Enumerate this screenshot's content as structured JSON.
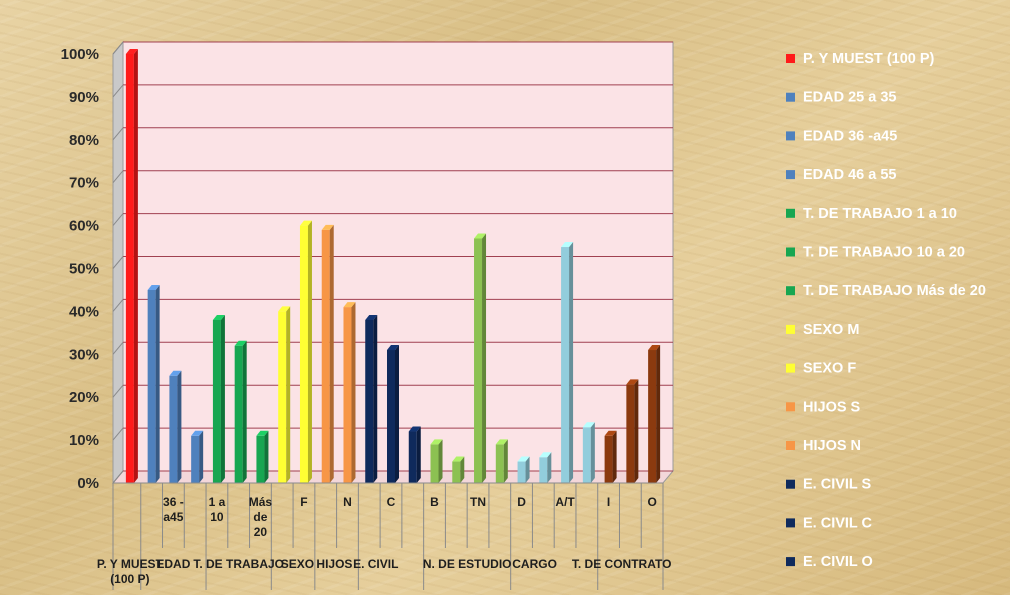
{
  "chart_data": {
    "type": "bar",
    "ylim": [
      0,
      100
    ],
    "yticks": [
      "0%",
      "10%",
      "20%",
      "30%",
      "40%",
      "50%",
      "60%",
      "70%",
      "80%",
      "90%",
      "100%"
    ],
    "grid": true,
    "legend_position": "right",
    "series": [
      {
        "name": "P.  Y MUEST (100 P)",
        "value": 100,
        "color": "#ff1a1a"
      },
      {
        "name": "EDAD  25 a 35",
        "value": 45,
        "color": "#4f81bd"
      },
      {
        "name": "EDAD  36 -a45",
        "value": 25,
        "color": "#4f81bd"
      },
      {
        "name": "EDAD  46 a 55",
        "value": 11,
        "color": "#4f81bd"
      },
      {
        "name": "T. DE TRABAJO 1 a 10",
        "value": 38,
        "color": "#17a651"
      },
      {
        "name": "T. DE TRABAJO 10 a 20",
        "value": 32,
        "color": "#17a651"
      },
      {
        "name": "T. DE TRABAJO Más de 20",
        "value": 11,
        "color": "#17a651"
      },
      {
        "name": "SEXO M",
        "value": 40,
        "color": "#ffff33"
      },
      {
        "name": "SEXO F",
        "value": 60,
        "color": "#ffff33"
      },
      {
        "name": "HIJOS S",
        "value": 59,
        "color": "#f79646"
      },
      {
        "name": "HIJOS N",
        "value": 41,
        "color": "#f79646"
      },
      {
        "name": "E. CIVIL S",
        "value": 38,
        "color": "#0f2a5c"
      },
      {
        "name": "E. CIVIL C",
        "value": 31,
        "color": "#0f2a5c"
      },
      {
        "name": "E. CIVIL O",
        "value": 12,
        "color": "#0f2a5c"
      },
      {
        "value": 9,
        "color": "#8cc152"
      },
      {
        "value": 5,
        "color": "#8cc152"
      },
      {
        "value": 57,
        "color": "#8cc152"
      },
      {
        "value": 9,
        "color": "#8cc152"
      },
      {
        "value": 5,
        "color": "#92cddc"
      },
      {
        "value": 6,
        "color": "#92cddc"
      },
      {
        "value": 55,
        "color": "#92cddc"
      },
      {
        "value": 13,
        "color": "#92cddc"
      },
      {
        "value": 11,
        "color": "#8b3a0f"
      },
      {
        "value": 23,
        "color": "#8b3a0f"
      },
      {
        "value": 31,
        "color": "#8b3a0f"
      }
    ],
    "inner_labels": [
      {
        "lines": [
          "36 -",
          "a45"
        ],
        "slot": 2
      },
      {
        "lines": [
          "1 a",
          "10"
        ],
        "slot": 4
      },
      {
        "lines": [
          "Más",
          "de",
          "20"
        ],
        "slot": 6
      },
      {
        "lines": [
          "F"
        ],
        "slot": 8
      },
      {
        "lines": [
          "N"
        ],
        "slot": 10
      },
      {
        "lines": [
          "C"
        ],
        "slot": 12
      },
      {
        "lines": [
          "B"
        ],
        "slot": 14
      },
      {
        "lines": [
          "TN"
        ],
        "slot": 16
      },
      {
        "lines": [
          "D"
        ],
        "slot": 18
      },
      {
        "lines": [
          "A/T"
        ],
        "slot": 20
      },
      {
        "lines": [
          "I"
        ],
        "slot": 22
      },
      {
        "lines": [
          "O"
        ],
        "slot": 24
      }
    ],
    "group_labels": [
      {
        "lines": [
          "P.  Y MUEST",
          "(100 P)"
        ],
        "slot": 0
      },
      {
        "lines": [
          "EDAD"
        ],
        "slot": 2
      },
      {
        "lines": [
          "T. DE TRABAJO"
        ],
        "slot": 5
      },
      {
        "lines": [
          "SEXO"
        ],
        "slot": 7.7
      },
      {
        "lines": [
          "HIJOS"
        ],
        "slot": 9.4
      },
      {
        "lines": [
          "E. CIVIL"
        ],
        "slot": 11.3
      },
      {
        "lines": [
          "N. DE ESTUDIO"
        ],
        "slot": 15.5
      },
      {
        "lines": [
          "CARGO"
        ],
        "slot": 18.6
      },
      {
        "lines": [
          "T. DE CONTRATO"
        ],
        "slot": 22.6
      }
    ]
  }
}
